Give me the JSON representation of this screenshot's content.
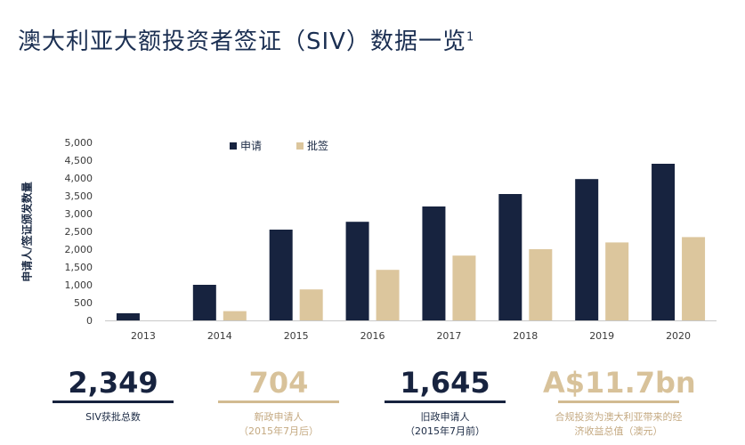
{
  "header": {
    "title": "澳大利亚大额投资者签证（SIV）数据一览",
    "footnote_mark": "1"
  },
  "colors": {
    "navy": "#17233f",
    "tan": "#dcc69d",
    "axis": "#c8c8c8"
  },
  "chart_data": {
    "type": "bar",
    "categories": [
      "2013",
      "2014",
      "2015",
      "2016",
      "2017",
      "2018",
      "2019",
      "2020"
    ],
    "series": [
      {
        "name": "申请",
        "color": "#17233f",
        "values": [
          200,
          1000,
          2550,
          2770,
          3200,
          3550,
          3970,
          4400
        ]
      },
      {
        "name": "批签",
        "color": "#dcc69d",
        "values": [
          0,
          260,
          870,
          1420,
          1820,
          2000,
          2190,
          2340
        ]
      }
    ],
    "ylabel": "申请人/签证颁发数量",
    "ylim": [
      0,
      5000
    ],
    "yticks": [
      "5,000",
      "4,500",
      "4,000",
      "3,500",
      "3,000",
      "2,500",
      "2,000",
      "1,500",
      "1,000",
      "500",
      "0"
    ],
    "ytick_values": [
      5000,
      4500,
      4000,
      3500,
      3000,
      2500,
      2000,
      1500,
      1000,
      500,
      0
    ],
    "grid": false,
    "legend": "top-left"
  },
  "stats": [
    {
      "value": "2,349",
      "label_lines": [
        "SIV获批总数"
      ]
    },
    {
      "value": "704",
      "label_lines": [
        "新政申请人",
        "（2015年7月后）"
      ]
    },
    {
      "value": "1,645",
      "label_lines": [
        "旧政申请人",
        "（2015年7月前）"
      ]
    },
    {
      "value": "A$11.7bn",
      "label_lines": [
        "合规投资为澳大利亚带来的经",
        "济收益总值（澳元）"
      ]
    }
  ]
}
